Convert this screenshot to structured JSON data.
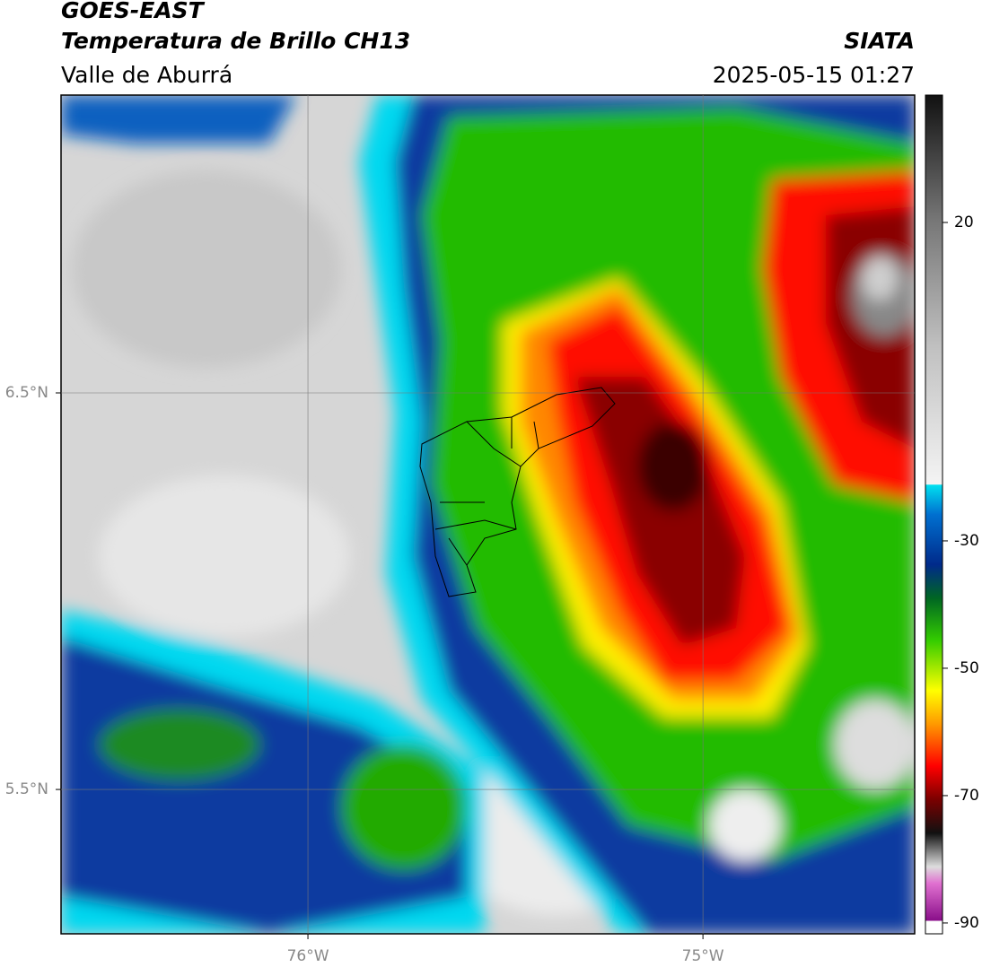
{
  "header": {
    "title": "GOES-EAST",
    "subtitle": "Temperatura de Brillo CH13",
    "region": "Valle de Aburrá",
    "source": "SIATA",
    "datetime": "2025-05-15 01:27"
  },
  "map": {
    "xlim": [
      -76.625,
      -74.464
    ],
    "ylim": [
      5.136,
      7.251
    ],
    "xticks": [
      {
        "value": -76,
        "label": "76°W"
      },
      {
        "value": -75,
        "label": "75°W"
      }
    ],
    "yticks": [
      {
        "value": 6.5,
        "label": "6.5°N"
      },
      {
        "value": 5.5,
        "label": "5.5°N"
      }
    ],
    "grid": true
  },
  "colorbar": {
    "lim": [
      -91.7,
      40
    ],
    "ticks": [
      20,
      -30,
      -50,
      -70,
      -90
    ]
  }
}
